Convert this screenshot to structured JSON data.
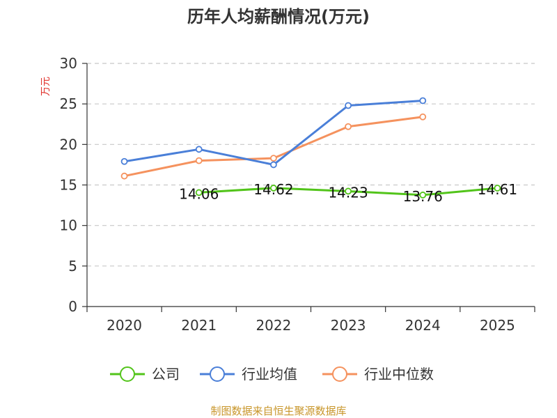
{
  "chart_data": {
    "type": "line",
    "title": "历年人均薪酬情况(万元)",
    "ylabel": "万元",
    "xlabel": "",
    "categories": [
      "2020",
      "2021",
      "2022",
      "2023",
      "2024",
      "2025"
    ],
    "ylim": [
      0,
      30
    ],
    "yticks": [
      0,
      5,
      10,
      15,
      20,
      25,
      30
    ],
    "grid": true,
    "legend_position": "bottom",
    "series": [
      {
        "name": "公司",
        "color": "#52c41a",
        "values": [
          null,
          14.06,
          14.62,
          14.23,
          13.76,
          14.61
        ],
        "labels": [
          "",
          "14.06",
          "14.62",
          "14.23",
          "13.76",
          "14.61"
        ]
      },
      {
        "name": "行业均值",
        "color": "#4a7fd8",
        "values": [
          17.9,
          19.4,
          17.5,
          24.8,
          25.4,
          null
        ],
        "labels": []
      },
      {
        "name": "行业中位数",
        "color": "#f5925e",
        "values": [
          16.1,
          18.0,
          18.3,
          22.2,
          23.4,
          null
        ],
        "labels": []
      }
    ]
  },
  "source_text": "制图数据来自恒生聚源数据库"
}
